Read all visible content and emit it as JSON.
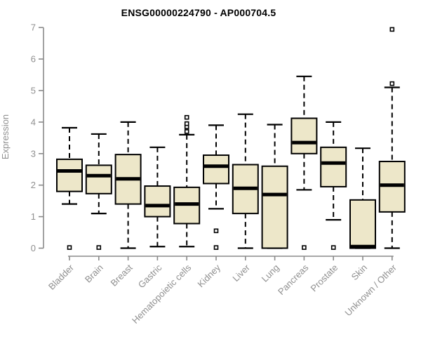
{
  "chart_data": {
    "type": "boxplot",
    "title": "ENSG00000224790 - AP000704.5",
    "xlabel": "",
    "ylabel": "Expression",
    "ylim": [
      0,
      7
    ],
    "yticks": [
      "0",
      "1",
      "2",
      "3",
      "4",
      "5",
      "6",
      "7"
    ],
    "grid": false,
    "legend": null,
    "categories": [
      "Bladder",
      "Brain",
      "Breast",
      "Gastric",
      "Hematopoietic cells",
      "Kidney",
      "Liver",
      "Lung",
      "Pancreas",
      "Prostate",
      "Skin",
      "Unknown / Other"
    ],
    "boxes": [
      {
        "category": "Bladder",
        "whisker_low": 1.4,
        "q1": 1.8,
        "median": 2.45,
        "q3": 2.82,
        "whisker_high": 3.82,
        "outliers": [
          0.02
        ]
      },
      {
        "category": "Brain",
        "whisker_low": 1.1,
        "q1": 1.73,
        "median": 2.3,
        "q3": 2.63,
        "whisker_high": 3.62,
        "outliers": [
          0.02
        ]
      },
      {
        "category": "Breast",
        "whisker_low": 0,
        "q1": 1.4,
        "median": 2.2,
        "q3": 2.97,
        "whisker_high": 4.0,
        "outliers": []
      },
      {
        "category": "Gastric",
        "whisker_low": 0.05,
        "q1": 1.0,
        "median": 1.35,
        "q3": 1.97,
        "whisker_high": 3.2,
        "outliers": []
      },
      {
        "category": "Hematopoietic cells",
        "whisker_low": 0.05,
        "q1": 0.78,
        "median": 1.4,
        "q3": 1.93,
        "whisker_high": 3.6,
        "outliers": [
          3.7,
          3.85,
          3.95,
          4.15
        ]
      },
      {
        "category": "Kidney",
        "whisker_low": 1.25,
        "q1": 2.05,
        "median": 2.6,
        "q3": 2.95,
        "whisker_high": 3.9,
        "outliers": [
          0.55,
          0.02
        ]
      },
      {
        "category": "Liver",
        "whisker_low": 0,
        "q1": 1.1,
        "median": 1.9,
        "q3": 2.65,
        "whisker_high": 4.25,
        "outliers": []
      },
      {
        "category": "Lung",
        "whisker_low": 0,
        "q1": 0,
        "median": 1.7,
        "q3": 2.6,
        "whisker_high": 3.92,
        "outliers": []
      },
      {
        "category": "Pancreas",
        "whisker_low": 1.85,
        "q1": 3.0,
        "median": 3.35,
        "q3": 4.12,
        "whisker_high": 5.45,
        "outliers": [
          0.02
        ]
      },
      {
        "category": "Prostate",
        "whisker_low": 0.9,
        "q1": 1.95,
        "median": 2.7,
        "q3": 3.2,
        "whisker_high": 4.0,
        "outliers": [
          0.02
        ]
      },
      {
        "category": "Skin",
        "whisker_low": 0,
        "q1": 0,
        "median": 0.05,
        "q3": 1.53,
        "whisker_high": 3.17,
        "outliers": []
      },
      {
        "category": "Unknown / Other",
        "whisker_low": 0,
        "q1": 1.15,
        "median": 2.0,
        "q3": 2.75,
        "whisker_high": 5.1,
        "outliers": [
          5.22,
          6.94
        ]
      }
    ],
    "colors": {
      "box_fill": "#ede7c9",
      "box_border": "#000000",
      "median": "#000000",
      "whisker": "#000000",
      "outlier_fill": "#ffffff",
      "outlier_border": "#000000",
      "axis": "#8a8a8a",
      "tick_label": "#8f8f8f",
      "title": "#000000",
      "background": "#ffffff"
    }
  }
}
